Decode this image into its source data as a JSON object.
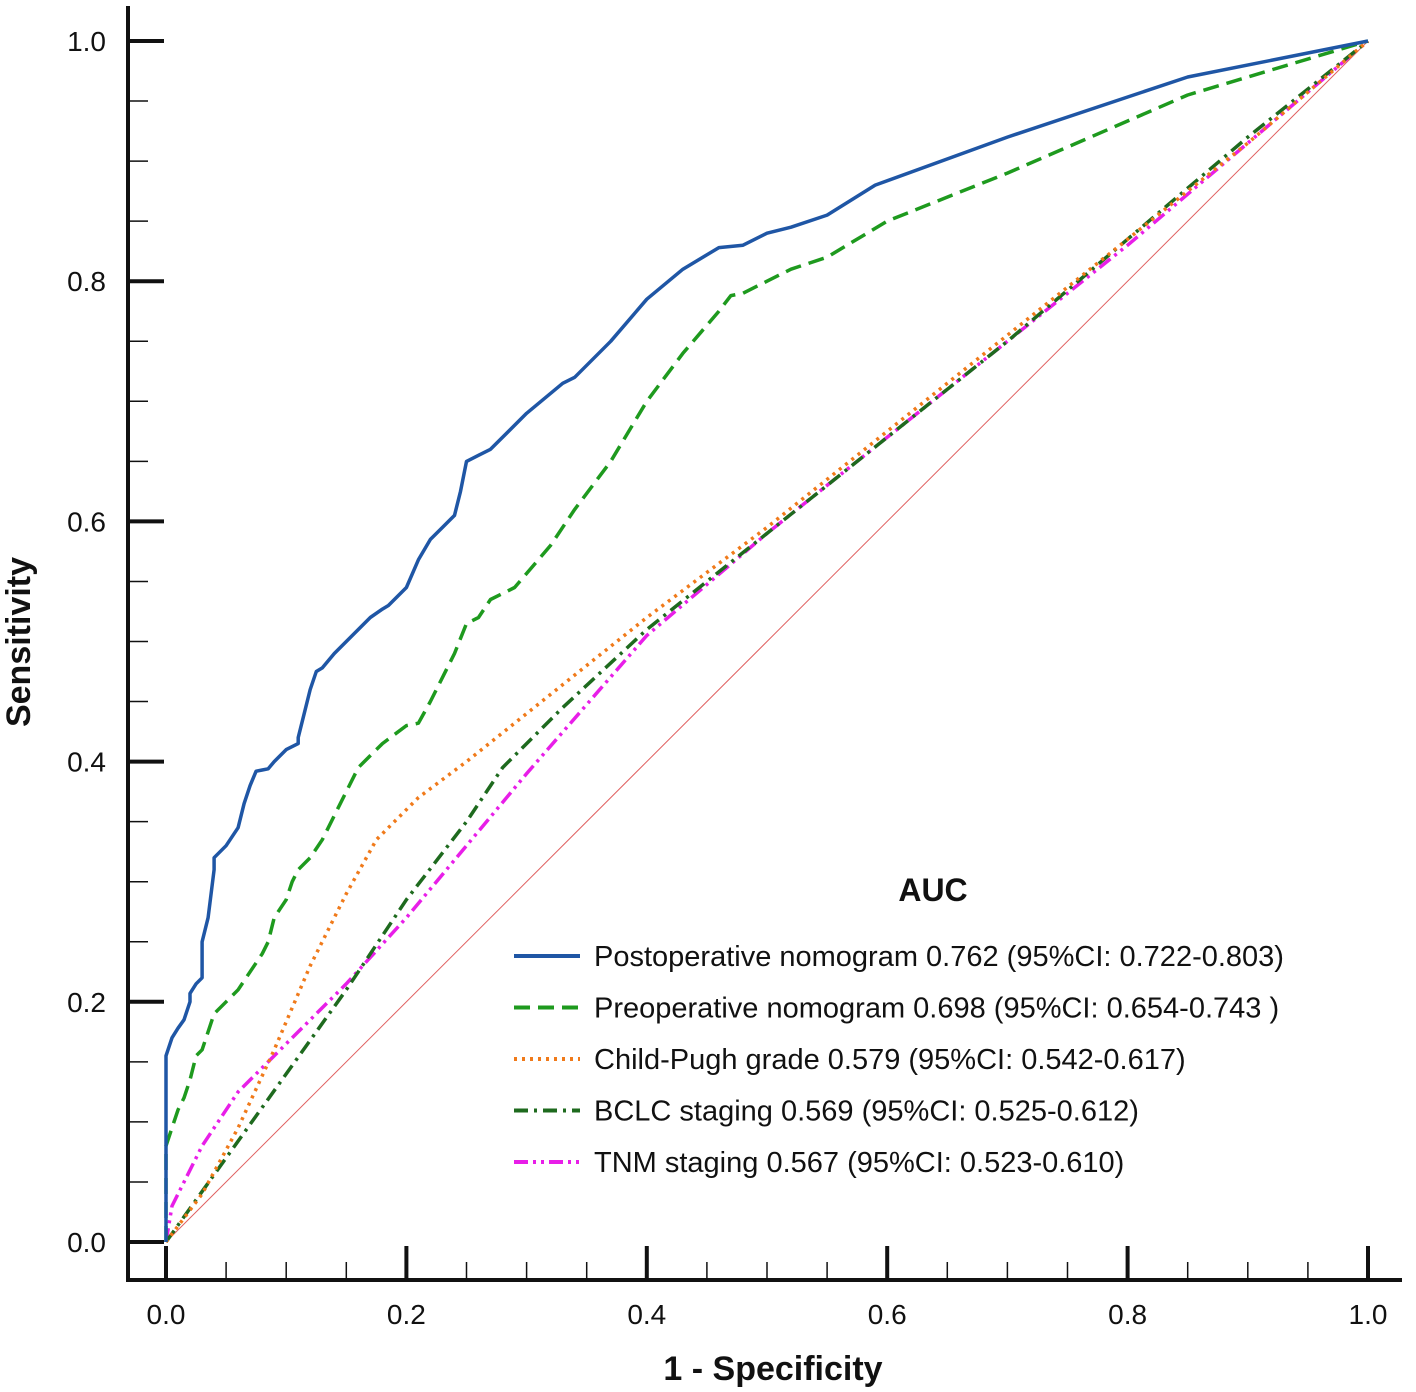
{
  "chart_data": {
    "type": "line",
    "title": "",
    "xlabel": "1 - Specificity",
    "ylabel": "Sensitivity",
    "xlim": [
      0,
      1
    ],
    "ylim": [
      0,
      1
    ],
    "x_ticks": [
      "0.0",
      "0.2",
      "0.4",
      "0.6",
      "0.8",
      "1.0"
    ],
    "y_ticks": [
      "0.0",
      "0.2",
      "0.4",
      "0.6",
      "0.8",
      "1.0"
    ],
    "legend_title": "AUC",
    "legend_position": "bottom-right",
    "reference_line": {
      "from": [
        0,
        0
      ],
      "to": [
        1,
        1
      ],
      "color": "#e06060"
    },
    "series": [
      {
        "name": "Postoperative nomogram",
        "label": "Postoperative nomogram 0.762 (95%CI: 0.722-0.803)",
        "auc": 0.762,
        "ci": [
          0.722,
          0.803
        ],
        "color": "#1f56a5",
        "dash": "solid",
        "x": [
          0,
          0,
          0.005,
          0.01,
          0.015,
          0.02,
          0.02,
          0.025,
          0.03,
          0.03,
          0.035,
          0.04,
          0.04,
          0.045,
          0.05,
          0.06,
          0.065,
          0.07,
          0.075,
          0.08,
          0.085,
          0.09,
          0.095,
          0.1,
          0.11,
          0.11,
          0.115,
          0.12,
          0.125,
          0.13,
          0.14,
          0.15,
          0.16,
          0.17,
          0.18,
          0.185,
          0.19,
          0.2,
          0.21,
          0.22,
          0.23,
          0.24,
          0.245,
          0.25,
          0.26,
          0.27,
          0.3,
          0.33,
          0.34,
          0.37,
          0.4,
          0.43,
          0.46,
          0.48,
          0.5,
          0.52,
          0.55,
          0.59,
          0.7,
          0.85,
          1.0
        ],
        "y": [
          0,
          0.155,
          0.17,
          0.178,
          0.185,
          0.2,
          0.207,
          0.215,
          0.22,
          0.25,
          0.27,
          0.31,
          0.32,
          0.325,
          0.33,
          0.345,
          0.365,
          0.38,
          0.392,
          0.393,
          0.394,
          0.4,
          0.405,
          0.41,
          0.415,
          0.42,
          0.44,
          0.46,
          0.475,
          0.478,
          0.49,
          0.5,
          0.51,
          0.52,
          0.527,
          0.53,
          0.535,
          0.545,
          0.568,
          0.585,
          0.595,
          0.605,
          0.625,
          0.65,
          0.655,
          0.66,
          0.69,
          0.715,
          0.72,
          0.75,
          0.785,
          0.81,
          0.828,
          0.83,
          0.84,
          0.845,
          0.855,
          0.88,
          0.92,
          0.97,
          1.0
        ]
      },
      {
        "name": "Preoperative nomogram",
        "label": "Preoperative nomogram 0.698 (95%CI: 0.654-0.743 )",
        "auc": 0.698,
        "ci": [
          0.654,
          0.743
        ],
        "color": "#1e9a1e",
        "dash": "dashed",
        "x": [
          0,
          0,
          0.005,
          0.01,
          0.015,
          0.02,
          0.025,
          0.03,
          0.035,
          0.04,
          0.045,
          0.05,
          0.06,
          0.07,
          0.08,
          0.085,
          0.09,
          0.1,
          0.105,
          0.11,
          0.12,
          0.13,
          0.14,
          0.15,
          0.16,
          0.17,
          0.18,
          0.2,
          0.21,
          0.22,
          0.24,
          0.25,
          0.26,
          0.27,
          0.28,
          0.29,
          0.32,
          0.34,
          0.37,
          0.4,
          0.43,
          0.46,
          0.47,
          0.48,
          0.5,
          0.52,
          0.55,
          0.6,
          0.7,
          0.85,
          1.0
        ],
        "y": [
          0,
          0.08,
          0.095,
          0.11,
          0.12,
          0.135,
          0.155,
          0.16,
          0.175,
          0.19,
          0.195,
          0.2,
          0.21,
          0.225,
          0.24,
          0.25,
          0.27,
          0.285,
          0.3,
          0.31,
          0.32,
          0.335,
          0.355,
          0.375,
          0.395,
          0.405,
          0.415,
          0.43,
          0.432,
          0.45,
          0.49,
          0.515,
          0.52,
          0.535,
          0.54,
          0.545,
          0.58,
          0.61,
          0.65,
          0.7,
          0.74,
          0.775,
          0.788,
          0.79,
          0.8,
          0.81,
          0.82,
          0.85,
          0.89,
          0.955,
          1.0
        ]
      },
      {
        "name": "Child-Pugh grade",
        "label": "Child-Pugh grade 0.579 (95%CI: 0.542-0.617)",
        "auc": 0.579,
        "ci": [
          0.542,
          0.617
        ],
        "color": "#f07a1a",
        "dash": "dotted",
        "x": [
          0,
          0.03,
          0.06,
          0.09,
          0.12,
          0.15,
          0.175,
          0.21,
          0.25,
          0.3,
          0.35,
          0.4,
          0.5,
          0.6,
          0.7,
          0.8,
          0.9,
          1.0
        ],
        "y": [
          0,
          0.04,
          0.095,
          0.16,
          0.23,
          0.29,
          0.335,
          0.37,
          0.4,
          0.44,
          0.48,
          0.52,
          0.595,
          0.675,
          0.755,
          0.835,
          0.915,
          1.0
        ]
      },
      {
        "name": "BCLC staging",
        "label": "BCLC staging 0.569 (95%CI: 0.525-0.612)",
        "auc": 0.569,
        "ci": [
          0.525,
          0.612
        ],
        "color": "#1e6a1e",
        "dash": "dashdot",
        "x": [
          0,
          0.05,
          0.1,
          0.15,
          0.2,
          0.25,
          0.28,
          0.33,
          0.4,
          0.5,
          0.6,
          0.7,
          0.8,
          0.9,
          1.0
        ],
        "y": [
          0,
          0.07,
          0.14,
          0.21,
          0.285,
          0.35,
          0.395,
          0.445,
          0.51,
          0.59,
          0.67,
          0.75,
          0.835,
          0.92,
          1.0
        ]
      },
      {
        "name": "TNM staging",
        "label": "TNM staging 0.567 (95%CI: 0.523-0.610)",
        "auc": 0.567,
        "ci": [
          0.523,
          0.61
        ],
        "color": "#e81ee8",
        "dash": "dashdotdot",
        "x": [
          0,
          0.005,
          0.03,
          0.06,
          0.1,
          0.15,
          0.2,
          0.3,
          0.4,
          0.5,
          0.6,
          0.7,
          0.8,
          0.9,
          1.0
        ],
        "y": [
          0,
          0.03,
          0.08,
          0.125,
          0.165,
          0.215,
          0.27,
          0.39,
          0.505,
          0.59,
          0.67,
          0.75,
          0.83,
          0.915,
          1.0
        ]
      }
    ]
  }
}
